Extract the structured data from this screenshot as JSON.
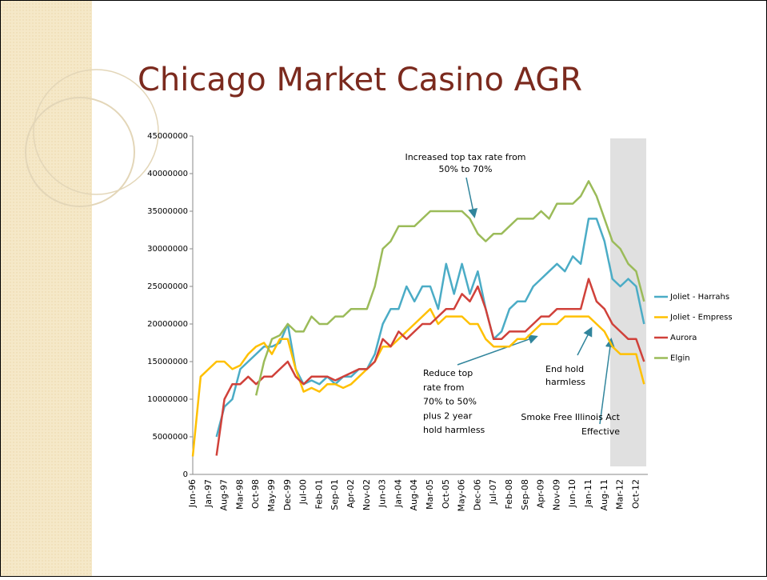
{
  "chart_data": {
    "type": "line",
    "title": "Chicago Market Casino AGR",
    "categories": [
      "Jun-96",
      null,
      "Jan-97",
      null,
      "Aug-97",
      null,
      "Mar-98",
      null,
      "Oct-98",
      null,
      "May-99",
      null,
      "Dec-99",
      null,
      "Jul-00",
      null,
      "Feb-01",
      null,
      "Sep-01",
      null,
      "Apr-02",
      null,
      "Nov-02",
      null,
      "Jun-03",
      null,
      "Jan-04",
      null,
      "Aug-04",
      null,
      "Mar-05",
      null,
      "Oct-05",
      null,
      "May-06",
      null,
      "Dec-06",
      null,
      "Jul-07",
      null,
      "Feb-08",
      null,
      "Sep-08",
      null,
      "Apr-09",
      null,
      "Nov-09",
      null,
      "Jun-10",
      null,
      "Jan-11",
      null,
      "Aug-11",
      null,
      "Mar-12",
      null,
      "Oct-12",
      null
    ],
    "series": [
      {
        "name": "Joliet - Harrahs",
        "color": "#4bacc6",
        "values": [
          null,
          null,
          null,
          5000000,
          9000000,
          10000000,
          14000000,
          15000000,
          16000000,
          17000000,
          17000000,
          17500000,
          20000000,
          14000000,
          12000000,
          12500000,
          12000000,
          13000000,
          12000000,
          13000000,
          13000000,
          14000000,
          14000000,
          16000000,
          20000000,
          22000000,
          22000000,
          25000000,
          23000000,
          25000000,
          25000000,
          22000000,
          28000000,
          24000000,
          28000000,
          24000000,
          27000000,
          22000000,
          18000000,
          19000000,
          22000000,
          23000000,
          23000000,
          25000000,
          26000000,
          27000000,
          28000000,
          27000000,
          29000000,
          28000000,
          34000000,
          34000000,
          31000000,
          26000000,
          25000000,
          26000000,
          25000000,
          20000000
        ]
      },
      {
        "name": "Joliet - Empress",
        "color": "#ffc000",
        "values": [
          2400000,
          13000000,
          14000000,
          15000000,
          15000000,
          14000000,
          14500000,
          16000000,
          17000000,
          17500000,
          16000000,
          18000000,
          18000000,
          14000000,
          11000000,
          11500000,
          11000000,
          12000000,
          12000000,
          11500000,
          12000000,
          13000000,
          14000000,
          15000000,
          17000000,
          17000000,
          18000000,
          19000000,
          20000000,
          21000000,
          22000000,
          20000000,
          21000000,
          21000000,
          21000000,
          20000000,
          20000000,
          18000000,
          17000000,
          17000000,
          17000000,
          18000000,
          18000000,
          19000000,
          20000000,
          20000000,
          20000000,
          21000000,
          21000000,
          21000000,
          21000000,
          20000000,
          19000000,
          17000000,
          16000000,
          16000000,
          16000000,
          12000000
        ]
      },
      {
        "name": "Aurora",
        "color": "#d0413a",
        "values": [
          null,
          null,
          null,
          2500000,
          10000000,
          12000000,
          12000000,
          13000000,
          12000000,
          13000000,
          13000000,
          14000000,
          15000000,
          13000000,
          12000000,
          13000000,
          13000000,
          13000000,
          12500000,
          13000000,
          13500000,
          14000000,
          14000000,
          15000000,
          18000000,
          17000000,
          19000000,
          18000000,
          19000000,
          20000000,
          20000000,
          21000000,
          22000000,
          22000000,
          24000000,
          23000000,
          25000000,
          22000000,
          18000000,
          18000000,
          19000000,
          19000000,
          19000000,
          20000000,
          21000000,
          21000000,
          22000000,
          22000000,
          22000000,
          22000000,
          26000000,
          23000000,
          22000000,
          20000000,
          19000000,
          18000000,
          18000000,
          15000000
        ]
      },
      {
        "name": "Elgin",
        "color": "#9bbb59",
        "values": [
          null,
          null,
          null,
          null,
          null,
          null,
          null,
          null,
          10500000,
          15000000,
          18000000,
          18500000,
          20000000,
          19000000,
          19000000,
          21000000,
          20000000,
          20000000,
          21000000,
          21000000,
          22000000,
          22000000,
          22000000,
          25000000,
          30000000,
          31000000,
          33000000,
          33000000,
          33000000,
          34000000,
          35000000,
          35000000,
          35000000,
          35000000,
          35000000,
          34000000,
          32000000,
          31000000,
          32000000,
          32000000,
          33000000,
          34000000,
          34000000,
          34000000,
          35000000,
          34000000,
          36000000,
          36000000,
          36000000,
          37000000,
          39000000,
          37000000,
          34000000,
          31000000,
          30000000,
          28000000,
          27000000,
          23000000
        ]
      }
    ],
    "ylim": [
      0,
      45000000
    ],
    "yticks": [
      0,
      5000000,
      10000000,
      15000000,
      20000000,
      25000000,
      30000000,
      35000000,
      40000000,
      45000000
    ],
    "legend": "right",
    "annotations": [
      [
        "Increased top tax rate from",
        "50% to 70%"
      ],
      [
        "Reduce top",
        "rate from",
        "70% to 50%",
        "plus 2 year",
        "hold harmless"
      ],
      [
        "End hold",
        "harmless"
      ],
      [
        "Smoke Free Illinois Act",
        "Effective"
      ]
    ]
  }
}
